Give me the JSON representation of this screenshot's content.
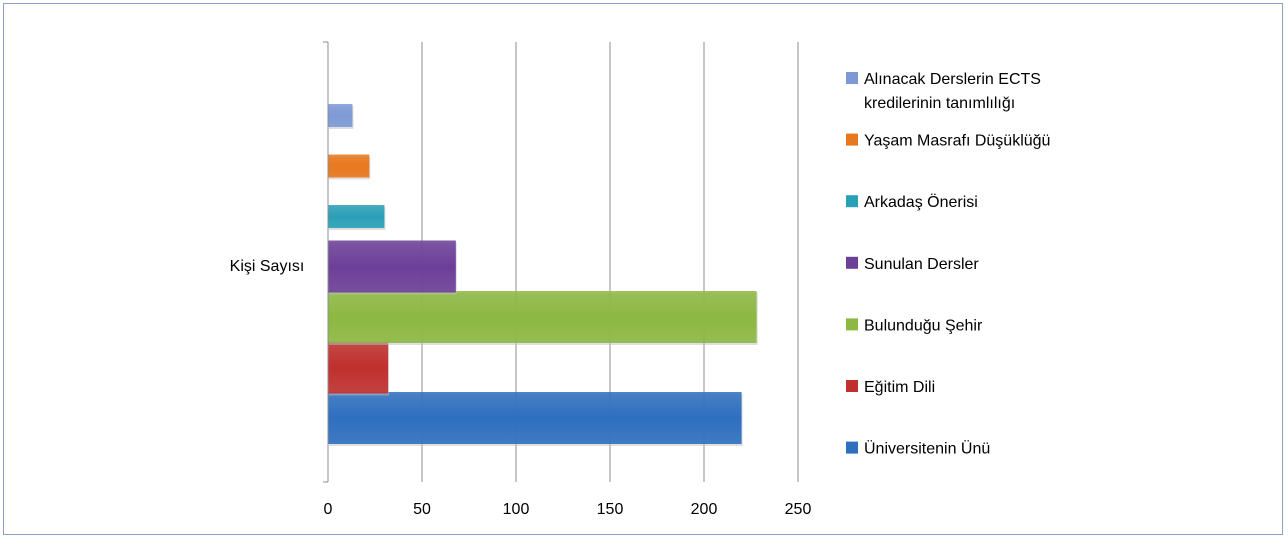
{
  "chart_data": {
    "type": "bar",
    "orientation": "horizontal",
    "category": "Kişi Sayısı",
    "xlim": [
      0,
      250
    ],
    "xticks": [
      0,
      50,
      100,
      150,
      200,
      250
    ],
    "grid": true,
    "legend_position": "right",
    "series": [
      {
        "name": "Üniversitenin Ünü",
        "value": 220,
        "color": "#2e6fbf"
      },
      {
        "name": "Eğitim Dili",
        "value": 32,
        "color": "#c0302e"
      },
      {
        "name": "Bulunduğu Şehir",
        "value": 228,
        "color": "#8db842"
      },
      {
        "name": "Sunulan Dersler",
        "value": 68,
        "color": "#6c3f98"
      },
      {
        "name": "Arkadaş Önerisi",
        "value": 30,
        "color": "#2aa0b8"
      },
      {
        "name": "Yaşam Masrafı Düşüklüğü",
        "value": 22,
        "color": "#e8781e"
      },
      {
        "name": "Alınacak Derslerin ECTS kredilerinin  tanımlılığı",
        "value": 13,
        "color": "#7d9ad6",
        "lines": [
          "Alınacak Derslerin ECTS",
          "kredilerinin  tanımlılığı"
        ]
      }
    ]
  }
}
